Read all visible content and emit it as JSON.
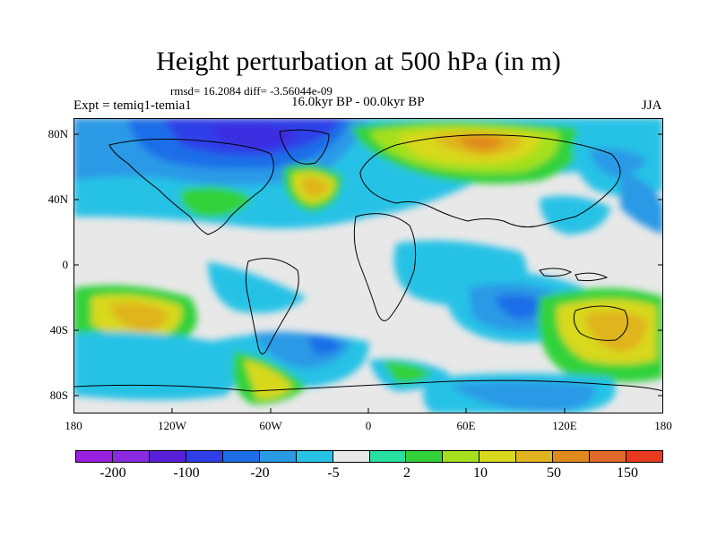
{
  "title": "Height perturbation at 500 hPa (in m)",
  "stats": "rmsd= 16.2084 diff= -3.56044e-09",
  "expt": "Expt = temiq1-temia1",
  "period": "16.0kyr BP - 00.0kyr BP",
  "season": "JJA",
  "y_ticks": [
    "80N",
    "40N",
    "0",
    "40S",
    "80S"
  ],
  "x_ticks": [
    "180",
    "120W",
    "60W",
    "0",
    "60E",
    "120E",
    "180"
  ],
  "colorbar": {
    "colors": [
      "#9b1fe0",
      "#8a2be2",
      "#5a1fd8",
      "#2f3fe8",
      "#1e6ee8",
      "#2b9ae6",
      "#27c2e6",
      "#e8e8e8",
      "#27e0a0",
      "#33d23a",
      "#a5e01e",
      "#d8d81e",
      "#e0b41e",
      "#e08a1e",
      "#e06a2a",
      "#e83a1e"
    ],
    "labels": [
      "-200",
      "-100",
      "-20",
      "-5",
      "2",
      "10",
      "50",
      "150"
    ]
  },
  "map": {
    "background_color": "#e8e8e8",
    "land_outline_color": "#000000"
  }
}
